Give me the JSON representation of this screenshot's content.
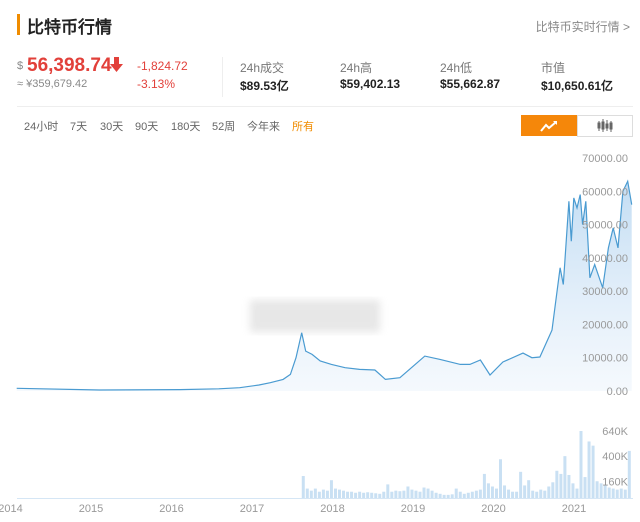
{
  "header": {
    "title": "比特币行情",
    "link": "比特币实时行情 >"
  },
  "ticker": {
    "currency_symbol": "$",
    "price": "56,398.74",
    "direction_icon": "arrow-down-icon",
    "cny_price": "≈ ¥359,679.42",
    "change": "-1,824.72",
    "change_pct": "-3.13%",
    "down_color": "#e2403a"
  },
  "stats": [
    {
      "label": "24h成交",
      "value": "$89.53亿"
    },
    {
      "label": "24h高",
      "value": "$59,402.13"
    },
    {
      "label": "24h低",
      "value": "$55,662.87"
    },
    {
      "label": "市值",
      "value": "$10,650.61亿"
    }
  ],
  "range_tabs": [
    {
      "label": "24小时",
      "active": false
    },
    {
      "label": "7天",
      "active": false
    },
    {
      "label": "30天",
      "active": false
    },
    {
      "label": "90天",
      "active": false
    },
    {
      "label": "180天",
      "active": false
    },
    {
      "label": "52周",
      "active": false
    },
    {
      "label": "今年来",
      "active": false
    },
    {
      "label": "所有",
      "active": true
    }
  ],
  "chart_toggle": {
    "line_icon": "line-chart-icon",
    "candle_icon": "candlestick-icon",
    "active": "line",
    "accent": "#f5870a"
  },
  "chart_data": [
    {
      "type": "area",
      "line_color": "#4a9bd1",
      "x_unit": "year",
      "x_ticks": [
        "2014",
        "2015",
        "2016",
        "2017",
        "2018",
        "2019",
        "2020",
        "2021"
      ],
      "y_ticks": [
        "0.00",
        "10000.00",
        "20000.00",
        "30000.00",
        "40000.00",
        "50000.00",
        "60000.00",
        "70000.00"
      ],
      "ylim": [
        0,
        70000
      ],
      "grid": false,
      "x": [
        2013.99,
        2015.02,
        2016.02,
        2016.5,
        2016.76,
        2017.0,
        2017.14,
        2017.3,
        2017.39,
        2017.46,
        2017.53,
        2017.58,
        2017.66,
        2017.76,
        2017.9,
        2018.07,
        2018.25,
        2018.44,
        2018.57,
        2018.75,
        2018.94,
        2019.06,
        2019.25,
        2019.5,
        2019.62,
        2019.75,
        2019.87,
        2020.03,
        2020.28,
        2020.39,
        2020.49,
        2020.64,
        2020.74,
        2020.78,
        2020.85,
        2020.88,
        2020.91,
        2020.95,
        2020.99,
        2021.02,
        2021.06,
        2021.11,
        2021.17,
        2021.27,
        2021.34,
        2021.4,
        2021.46,
        2021.52,
        2021.58,
        2021.63
      ],
      "y": [
        800,
        300,
        420,
        650,
        1000,
        1800,
        2500,
        3500,
        5000,
        10000,
        17500,
        12000,
        11000,
        9000,
        8000,
        7000,
        6500,
        6300,
        3500,
        4000,
        8000,
        10500,
        9500,
        8000,
        8000,
        9300,
        4800,
        8700,
        11400,
        10000,
        10200,
        18300,
        37000,
        32000,
        57000,
        45000,
        58000,
        55000,
        59000,
        50000,
        57000,
        34000,
        38000,
        31000,
        43000,
        49000,
        43000,
        60000,
        63000,
        56000
      ]
    },
    {
      "type": "bar",
      "bar_color": "#c9e0f3",
      "x_start": 2017.55,
      "x_step": 0.05,
      "y_ticks": [
        "160K",
        "400K",
        "640K"
      ],
      "ylim": [
        0,
        640
      ],
      "y_unit": "K",
      "values": [
        210,
        90,
        70,
        90,
        60,
        80,
        70,
        170,
        90,
        80,
        70,
        60,
        60,
        50,
        60,
        50,
        55,
        50,
        45,
        40,
        60,
        130,
        60,
        70,
        65,
        70,
        110,
        80,
        70,
        60,
        100,
        90,
        70,
        50,
        40,
        30,
        30,
        35,
        90,
        60,
        40,
        50,
        60,
        70,
        80,
        230,
        140,
        110,
        90,
        370,
        120,
        80,
        60,
        60,
        250,
        120,
        170,
        70,
        60,
        80,
        70,
        110,
        150,
        260,
        230,
        400,
        220,
        140,
        90,
        640,
        200,
        540,
        500,
        160,
        140,
        120,
        100,
        90,
        80,
        90,
        80,
        450
      ]
    }
  ]
}
